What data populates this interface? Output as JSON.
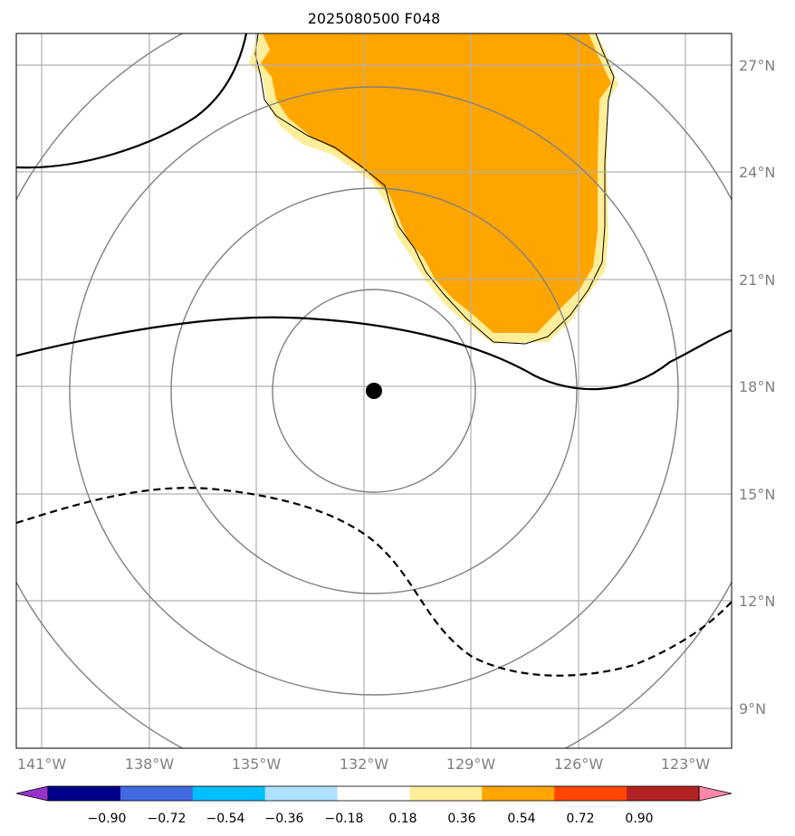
{
  "title": "2025080500 F048",
  "map": {
    "lat_labels": [
      "27°N",
      "24°N",
      "21°N",
      "18°N",
      "15°N",
      "12°N",
      "9°N"
    ],
    "lon_labels": [
      "141°W",
      "138°W",
      "135°W",
      "132°W",
      "129°W",
      "126°W",
      "123°W"
    ],
    "storm_center": {
      "lon": -131.8,
      "lat": 17.9
    },
    "fill_colors": {
      "0.36-0.54": "#ffee99",
      "0.54-0.72": "#ffa500"
    },
    "contour_color": "#000000",
    "range_ring_color": "#808080",
    "gridline_color": "#b0b0b0"
  },
  "colorbar": {
    "ticks": [
      "−0.90",
      "−0.72",
      "−0.54",
      "−0.36",
      "−0.18",
      "0.18",
      "0.36",
      "0.54",
      "0.72",
      "0.90"
    ],
    "colors": [
      "#9932cc",
      "#00008b",
      "#4169e1",
      "#00bfff",
      "#b0e0ff",
      "#ffffff",
      "#ffee99",
      "#ffa500",
      "#ff4500",
      "#b22222",
      "#ff88aa"
    ]
  }
}
